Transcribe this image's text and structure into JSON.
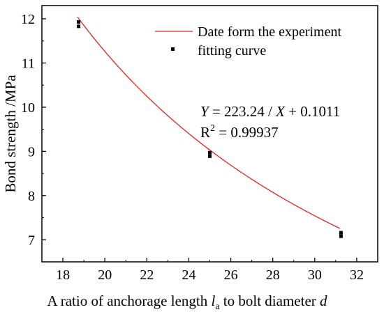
{
  "chart_data": {
    "type": "scatter",
    "xlabel_parts": [
      "A ratio of anchorage length ",
      "l",
      "a",
      " to bolt diameter ",
      "d"
    ],
    "ylabel": "Bond strength /MPa",
    "xlim": [
      17,
      33
    ],
    "ylim": [
      6.5,
      12.3
    ],
    "x_ticks": [
      "18",
      "20",
      "22",
      "24",
      "26",
      "28",
      "30",
      "32"
    ],
    "x_tick_values": [
      18,
      20,
      22,
      24,
      26,
      28,
      30,
      32
    ],
    "y_ticks": [
      "7",
      "8",
      "9",
      "10",
      "11",
      "12"
    ],
    "y_tick_values": [
      7,
      8,
      9,
      10,
      11,
      12
    ],
    "series": [
      {
        "name": "Date form the experiment",
        "kind": "line",
        "color": "#e8201e",
        "formula": {
          "a": 223.24,
          "b": 0.1011
        },
        "x_range": [
          18.7,
          31.2
        ]
      },
      {
        "name": "fitting curve",
        "kind": "points",
        "color": "#000000",
        "points": [
          {
            "x": 18.75,
            "y": 11.93
          },
          {
            "x": 18.75,
            "y": 11.83
          },
          {
            "x": 25,
            "y": 8.97
          },
          {
            "x": 25,
            "y": 8.89
          },
          {
            "x": 31.25,
            "y": 7.16
          },
          {
            "x": 31.25,
            "y": 7.08
          }
        ]
      }
    ],
    "annotation": {
      "equation_parts": [
        "Y",
        " = 223.24 / ",
        "X",
        " + 0.1011"
      ],
      "r2_parts": [
        "R",
        "2",
        " = 0.99937"
      ]
    },
    "legend_position": "top-right",
    "grid": false
  }
}
